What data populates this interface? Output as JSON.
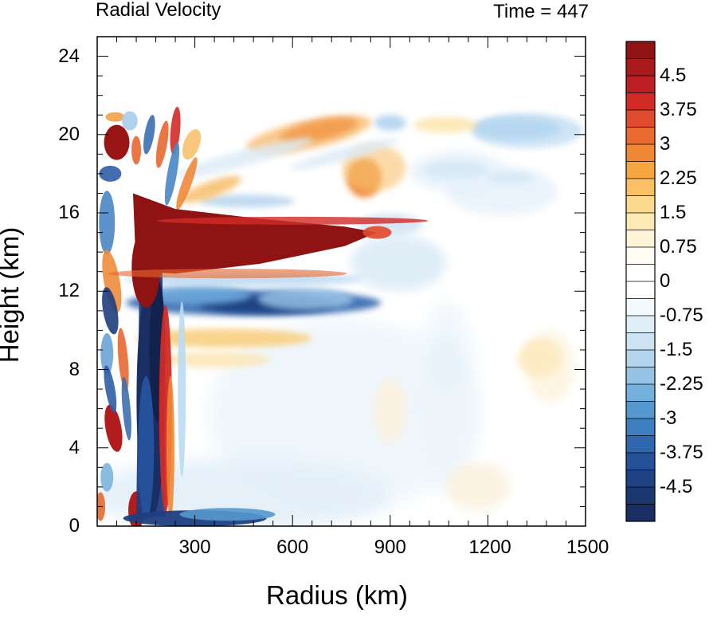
{
  "chart_data": {
    "type": "heatmap",
    "title": "Radial Velocity",
    "subtitle": "Time = 447",
    "xlabel": "Radius (km)",
    "ylabel": "Height (km)",
    "x_ticks": [
      300,
      600,
      900,
      1200,
      1500
    ],
    "y_ticks": [
      0,
      4,
      8,
      12,
      16,
      20,
      24
    ],
    "xlim": [
      0,
      1500
    ],
    "ylim": [
      0,
      25
    ],
    "colorbar": {
      "tick_labels": [
        "4.5",
        "3.75",
        "3",
        "2.25",
        "1.5",
        "0.75",
        "0",
        "-0.75",
        "-1.5",
        "-2.25",
        "-3",
        "-3.75",
        "-4.5"
      ],
      "range": [
        -5.25,
        5.25
      ],
      "color_top": "#8f1313",
      "color_mid": "#ffffff",
      "color_bottom": "#1b2e63"
    },
    "features": [
      {
        "r_center": 500,
        "h_center": 14.6,
        "value": 5.5,
        "r_extent": [
          120,
          860
        ],
        "h_extent": [
          13,
          16.8
        ]
      },
      {
        "r_center": 170,
        "h_center": 6.5,
        "value": -5.5,
        "r_extent": [
          140,
          200
        ],
        "h_extent": [
          0,
          13
        ]
      },
      {
        "r_center": 480,
        "h_center": 11.4,
        "value": -4.5,
        "r_extent": [
          250,
          700
        ],
        "h_extent": [
          10.6,
          12.4
        ]
      },
      {
        "r_center": 60,
        "h_center": 19.7,
        "value": 4.5
      },
      {
        "r_center": 60,
        "h_center": 5,
        "value": 4.0
      },
      {
        "r_center": 680,
        "h_center": 20.2,
        "value": 3.5
      },
      {
        "r_center": 820,
        "h_center": 17.8,
        "value": 3.0
      },
      {
        "r_center": 1280,
        "h_center": 20.3,
        "value": -2.5
      },
      {
        "r_center": 400,
        "h_center": 9.5,
        "value": 1.5
      },
      {
        "r_center": 1350,
        "h_center": 8.5,
        "value": 0.8
      }
    ]
  }
}
